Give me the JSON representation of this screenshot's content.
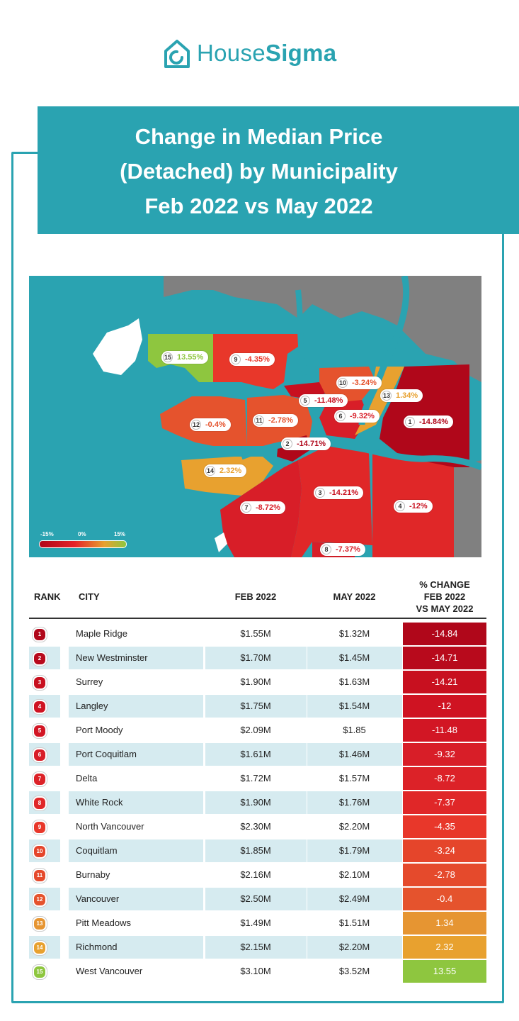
{
  "logo": {
    "name_light": "House",
    "name_bold": "Sigma"
  },
  "title": {
    "line1": "Change in Median Price",
    "line2": "(Detached) by Municipality",
    "line3": "Feb 2022 vs May 2022"
  },
  "colors": {
    "brand": "#2aa3b1",
    "land_gray": "#808080",
    "row_alt": "#d6ebf0"
  },
  "map": {
    "legend": {
      "min": "-15%",
      "mid": "0%",
      "max": "15%"
    },
    "labels": [
      {
        "rank": "15",
        "value": "13.55%",
        "color": "#8ec63f"
      },
      {
        "rank": "9",
        "value": "-4.35%",
        "color": "#e8372a"
      },
      {
        "rank": "10",
        "value": "-3.24%",
        "color": "#e5532d"
      },
      {
        "rank": "13",
        "value": "1.34%",
        "color": "#e8a12f"
      },
      {
        "rank": "5",
        "value": "-11.48%",
        "color": "#c8101f"
      },
      {
        "rank": "6",
        "value": "-9.32%",
        "color": "#d81e28"
      },
      {
        "rank": "1",
        "value": "-14.84%",
        "color": "#b0071a"
      },
      {
        "rank": "12",
        "value": "-0.4%",
        "color": "#e5532d"
      },
      {
        "rank": "11",
        "value": "-2.78%",
        "color": "#e5532d"
      },
      {
        "rank": "2",
        "value": "-14.71%",
        "color": "#b0071a"
      },
      {
        "rank": "14",
        "value": "2.32%",
        "color": "#e8a12f"
      },
      {
        "rank": "3",
        "value": "-14.21%",
        "color": "#c8101f"
      },
      {
        "rank": "4",
        "value": "-12%",
        "color": "#c8101f"
      },
      {
        "rank": "7",
        "value": "-8.72%",
        "color": "#d81e28"
      },
      {
        "rank": "8",
        "value": "-7.37%",
        "color": "#d81e28"
      }
    ]
  },
  "table": {
    "headers": {
      "rank": "RANK",
      "city": "CITY",
      "feb": "FEB 2022",
      "may": "MAY 2022",
      "chg1": "% CHANGE",
      "chg2": "FEB 2022",
      "chg3": "VS MAY 2022"
    }
  },
  "chart_data": {
    "type": "table",
    "title": "Change in Median Price (Detached) by Municipality Feb 2022 vs May 2022",
    "columns": [
      "RANK",
      "CITY",
      "FEB 2022",
      "MAY 2022",
      "% CHANGE FEB 2022 VS MAY 2022"
    ],
    "rows": [
      {
        "rank": "1",
        "city": "Maple Ridge",
        "feb": "$1.55M",
        "may": "$1.32M",
        "change": "-14.84",
        "color": "#b0071a"
      },
      {
        "rank": "2",
        "city": "New Westminster",
        "feb": "$1.70M",
        "may": "$1.45M",
        "change": "-14.71",
        "color": "#b80a1c"
      },
      {
        "rank": "3",
        "city": "Surrey",
        "feb": "$1.90M",
        "may": "$1.63M",
        "change": "-14.21",
        "color": "#c8101f"
      },
      {
        "rank": "4",
        "city": "Langley",
        "feb": "$1.75M",
        "may": "$1.54M",
        "change": "-12",
        "color": "#cf1322"
      },
      {
        "rank": "5",
        "city": "Port Moody",
        "feb": "$2.09M",
        "may": "$1.85",
        "change": "-11.48",
        "color": "#d21624"
      },
      {
        "rank": "6",
        "city": "Port Coquitlam",
        "feb": "$1.61M",
        "may": "$1.46M",
        "change": "-9.32",
        "color": "#d81e28"
      },
      {
        "rank": "7",
        "city": "Delta",
        "feb": "$1.72M",
        "may": "$1.57M",
        "change": "-8.72",
        "color": "#dc2228"
      },
      {
        "rank": "8",
        "city": "White Rock",
        "feb": "$1.90M",
        "may": "$1.76M",
        "change": "-7.37",
        "color": "#e02728"
      },
      {
        "rank": "9",
        "city": "North Vancouver",
        "feb": "$2.30M",
        "may": "$2.20M",
        "change": "-4.35",
        "color": "#e8372a"
      },
      {
        "rank": "10",
        "city": "Coquitlam",
        "feb": "$1.85M",
        "may": "$1.79M",
        "change": "-3.24",
        "color": "#e5452b"
      },
      {
        "rank": "11",
        "city": "Burnaby",
        "feb": "$2.16M",
        "may": "$2.10M",
        "change": "-2.78",
        "color": "#e54a2c"
      },
      {
        "rank": "12",
        "city": "Vancouver",
        "feb": "$2.50M",
        "may": "$2.49M",
        "change": "-0.4",
        "color": "#e5532d"
      },
      {
        "rank": "13",
        "city": "Pitt Meadows",
        "feb": "$1.49M",
        "may": "$1.51M",
        "change": "1.34",
        "color": "#e69532"
      },
      {
        "rank": "14",
        "city": "Richmond",
        "feb": "$2.15M",
        "may": "$2.20M",
        "change": "2.32",
        "color": "#e8a12f"
      },
      {
        "rank": "15",
        "city": "West Vancouver",
        "feb": "$3.10M",
        "may": "$3.52M",
        "change": "13.55",
        "color": "#8ec63f"
      }
    ]
  }
}
